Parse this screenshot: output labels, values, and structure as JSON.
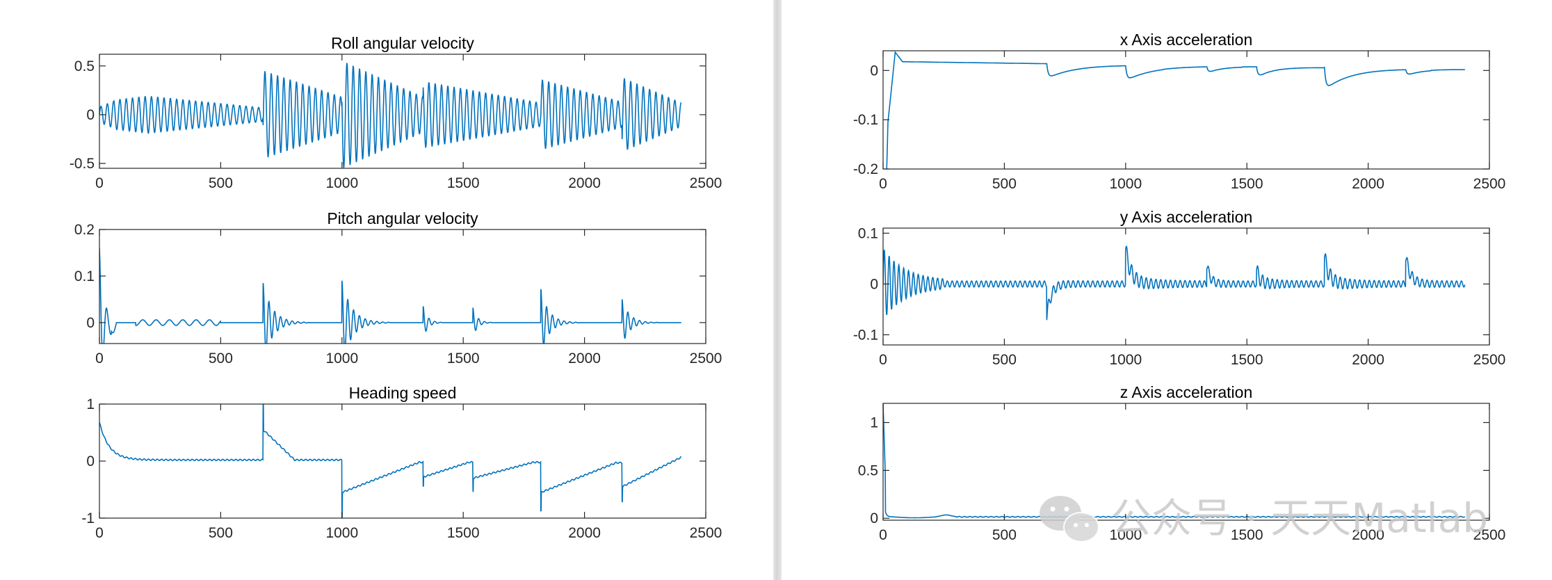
{
  "style": {
    "line_color": "#0072BD",
    "axes_color": "#262626",
    "background": "#ffffff"
  },
  "watermark": {
    "text": "公众号 · 天天Matlab",
    "icon": "wechat-icon"
  },
  "chart_data": [
    {
      "id": "roll",
      "type": "line",
      "title": "Roll angular velocity",
      "xlabel": "",
      "ylabel": "",
      "xlim": [
        0,
        2500
      ],
      "ylim": [
        -0.55,
        0.62
      ],
      "xticks": [
        0,
        500,
        1000,
        1500,
        2000,
        2500
      ],
      "yticks": [
        -0.5,
        0,
        0.5
      ],
      "ytick_labels": [
        "-0.5",
        "0",
        "0.5"
      ],
      "grid": false,
      "series": [
        {
          "kind": "oscillation",
          "n_points": 2400,
          "period": 26,
          "baseline": 0,
          "segments": [
            {
              "start": 0,
              "end": 60,
              "amp_start": 0.08,
              "amp_end": 0.14
            },
            {
              "start": 60,
              "end": 200,
              "amp_start": 0.15,
              "amp_end": 0.19
            },
            {
              "start": 200,
              "end": 675,
              "amp_start": 0.19,
              "amp_end": 0.07
            },
            {
              "start": 675,
              "end": 1000,
              "amp_start": 0.45,
              "amp_end": 0.18
            },
            {
              "start": 1000,
              "end": 1335,
              "amp_start": 0.55,
              "amp_end": 0.18
            },
            {
              "start": 1335,
              "end": 1820,
              "amp_start": 0.34,
              "amp_end": 0.12
            },
            {
              "start": 1820,
              "end": 2155,
              "amp_start": 0.36,
              "amp_end": 0.13
            },
            {
              "start": 2155,
              "end": 2400,
              "amp_start": 0.38,
              "amp_end": 0.12
            }
          ]
        }
      ]
    },
    {
      "id": "pitch",
      "type": "line",
      "title": "Pitch angular velocity",
      "xlabel": "",
      "ylabel": "",
      "xlim": [
        0,
        2500
      ],
      "ylim": [
        -0.045,
        0.2
      ],
      "xticks": [
        0,
        500,
        1000,
        1500,
        2000,
        2500
      ],
      "yticks": [
        0,
        0.1,
        0.2
      ],
      "ytick_labels": [
        "0",
        "0.1",
        "0.2"
      ],
      "grid": false,
      "series": [
        {
          "kind": "damped_events",
          "n_points": 2400,
          "period": 24,
          "baseline": 0,
          "initial": {
            "peak": 0.16,
            "decay": 18,
            "dip": -0.022
          },
          "small_wiggle": {
            "start": 150,
            "end": 500,
            "amp": 0.006
          },
          "events": [
            {
              "at": 675,
              "amp": 0.085,
              "decay": 38
            },
            {
              "at": 1000,
              "amp": 0.09,
              "decay": 40
            },
            {
              "at": 1335,
              "amp": 0.035,
              "decay": 18
            },
            {
              "at": 1540,
              "amp": 0.032,
              "decay": 18
            },
            {
              "at": 1820,
              "amp": 0.072,
              "decay": 32
            },
            {
              "at": 2155,
              "amp": 0.05,
              "decay": 30
            }
          ]
        }
      ]
    },
    {
      "id": "heading",
      "type": "line",
      "title": "Heading speed",
      "xlabel": "",
      "ylabel": "",
      "xlim": [
        0,
        2500
      ],
      "ylim": [
        -1,
        1
      ],
      "xticks": [
        0,
        500,
        1000,
        1500,
        2000,
        2500
      ],
      "yticks": [
        -1,
        0,
        1
      ],
      "ytick_labels": [
        "-1",
        "0",
        "1"
      ],
      "grid": false,
      "series": [
        {
          "kind": "steps",
          "n_points": 2400,
          "ripple": 0.012,
          "initial": {
            "peak": 0.68,
            "level": 0.02,
            "decay": 40
          },
          "steps": [
            {
              "at": 675,
              "spike": 1.0,
              "start": 0.55,
              "end": 0.02,
              "ramp": 130
            },
            {
              "at": 1000,
              "spike": -1.0,
              "start": -0.55,
              "end": -0.02,
              "ramp": 320
            },
            {
              "at": 1335,
              "spike": -0.45,
              "start": -0.28,
              "end": -0.02,
              "ramp": 190
            },
            {
              "at": 1540,
              "spike": -0.52,
              "start": -0.3,
              "end": -0.02,
              "ramp": 250
            },
            {
              "at": 1820,
              "spike": -0.88,
              "start": -0.55,
              "end": -0.03,
              "ramp": 310
            },
            {
              "at": 2155,
              "spike": -0.7,
              "start": -0.45,
              "end": 0.07,
              "ramp": 245
            }
          ]
        }
      ]
    },
    {
      "id": "accx",
      "type": "line",
      "title": "x  Axis acceleration",
      "xlabel": "",
      "ylabel": "",
      "xlim": [
        0,
        2500
      ],
      "ylim": [
        -0.2,
        0.04
      ],
      "xticks": [
        0,
        500,
        1000,
        1500,
        2000,
        2500
      ],
      "yticks": [
        -0.2,
        -0.1,
        0
      ],
      "ytick_labels": [
        "-0.2",
        "-0.1",
        "0"
      ],
      "grid": false,
      "series": [
        {
          "kind": "recovery",
          "n_points": 2400,
          "start_value": -0.2,
          "initial_peak": 0.037,
          "level_start": 0.018,
          "level_end": 0.002,
          "events": [
            {
              "at": 675,
              "dip": -0.03,
              "tau": 120
            },
            {
              "at": 1000,
              "dip": -0.03,
              "tau": 120
            },
            {
              "at": 1335,
              "dip": -0.013,
              "tau": 60
            },
            {
              "at": 1540,
              "dip": -0.022,
              "tau": 70
            },
            {
              "at": 1820,
              "dip": -0.045,
              "tau": 110
            },
            {
              "at": 2155,
              "dip": -0.012,
              "tau": 70
            }
          ]
        }
      ]
    },
    {
      "id": "accy",
      "type": "line",
      "title": "y  Axis acceleration",
      "xlabel": "",
      "ylabel": "",
      "xlim": [
        0,
        2500
      ],
      "ylim": [
        -0.12,
        0.11
      ],
      "xticks": [
        0,
        500,
        1000,
        1500,
        2000,
        2500
      ],
      "yticks": [
        -0.1,
        0,
        0.1
      ],
      "ytick_labels": [
        "-0.1",
        "0",
        "0.1"
      ],
      "grid": false,
      "series": [
        {
          "kind": "damped_events",
          "n_points": 2400,
          "period": 20,
          "baseline": 0,
          "initial": {
            "osc_amp": 0.065,
            "decay": 90
          },
          "sustained": 0.006,
          "events": [
            {
              "at": 675,
              "amp": -0.065,
              "decay": 70,
              "osc": 0.012
            },
            {
              "at": 1000,
              "amp": 0.068,
              "decay": 90,
              "osc": 0.012
            },
            {
              "at": 1335,
              "amp": 0.036,
              "decay": 60,
              "osc": 0.01
            },
            {
              "at": 1540,
              "amp": 0.027,
              "decay": 60,
              "osc": 0.01
            },
            {
              "at": 1820,
              "amp": 0.052,
              "decay": 80,
              "osc": 0.012
            },
            {
              "at": 2155,
              "amp": 0.052,
              "decay": 80,
              "osc": 0.012
            }
          ]
        }
      ]
    },
    {
      "id": "accz",
      "type": "line",
      "title": "z  Axis acceleration",
      "xlabel": "",
      "ylabel": "",
      "xlim": [
        0,
        2500
      ],
      "ylim": [
        -0.02,
        1.2
      ],
      "xticks": [
        0,
        500,
        1000,
        1500,
        2000,
        2500
      ],
      "yticks": [
        0,
        0.5,
        1
      ],
      "ytick_labels": [
        "0",
        "0.5",
        "1"
      ],
      "grid": false,
      "series": [
        {
          "kind": "spike_settle",
          "n_points": 2400,
          "spike": 1.2,
          "spike_width": 10,
          "level": 0.015,
          "early_dip": -0.01,
          "ripple": 0.004,
          "bump": {
            "at": 260,
            "amp": 0.02
          }
        }
      ]
    }
  ]
}
